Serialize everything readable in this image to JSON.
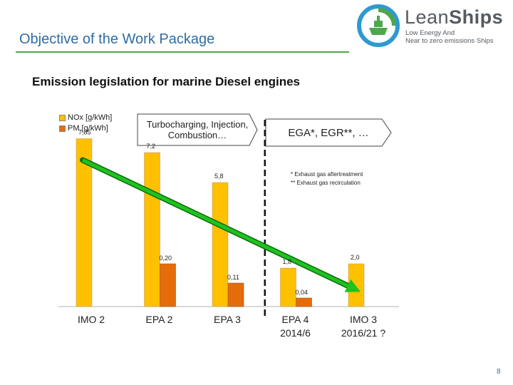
{
  "header": {
    "title": "Objective of the Work Package",
    "logo": {
      "name_part1": "Lean",
      "name_part2": "Ships",
      "tagline_line1": "Low Energy And",
      "tagline_line2": "Near to zero emissions Ships"
    }
  },
  "subtitle": "Emission legislation for marine Diesel engines",
  "callouts": {
    "left": {
      "line1": "Turbocharging, Injection,",
      "line2": "Combustion…"
    },
    "right": "EGA*, EGR**, …"
  },
  "footnotes": [
    "* Exhaust gas aftertreatment",
    "** Exhaust gas recirculation"
  ],
  "page_number": "8",
  "colors": {
    "nox": "#ffc000",
    "pm": "#e46c0a",
    "trend_arrow": "#1fc21f",
    "title": "#2e6da4",
    "rule": "#4ea64e"
  },
  "chart_data": {
    "type": "bar",
    "title": "Emission legislation for marine Diesel engines",
    "legend_position": "top-left",
    "categories": [
      "IMO 2",
      "EPA 2",
      "EPA 3",
      "EPA 4 2014/6",
      "IMO 3 2016/21 ?"
    ],
    "category_lines": [
      [
        "IMO 2"
      ],
      [
        "EPA 2"
      ],
      [
        "EPA 3"
      ],
      [
        "EPA 4",
        "2014/6"
      ],
      [
        "IMO 3",
        "2016/21 ?"
      ]
    ],
    "series": [
      {
        "name": "NOx [g/kWh]",
        "values": [
          7.85,
          7.2,
          5.8,
          1.8,
          2.0
        ],
        "labels": [
          "7,85",
          "7,2",
          "5,8",
          "1,8",
          "2,0"
        ]
      },
      {
        "name": "PM [g/kWh]",
        "values": [
          null,
          0.2,
          0.11,
          0.04,
          null
        ],
        "labels": [
          "",
          "0,20",
          "0,11",
          "0,04",
          ""
        ]
      }
    ],
    "pm_display_scale": 10,
    "ylim": [
      0,
      9
    ],
    "xlabel": "",
    "ylabel": "",
    "trend_arrow": {
      "from_category": "IMO 2",
      "to_category": "IMO 3 2016/21 ?"
    },
    "divider_between": [
      "EPA 3",
      "EPA 4 2014/6"
    ]
  }
}
